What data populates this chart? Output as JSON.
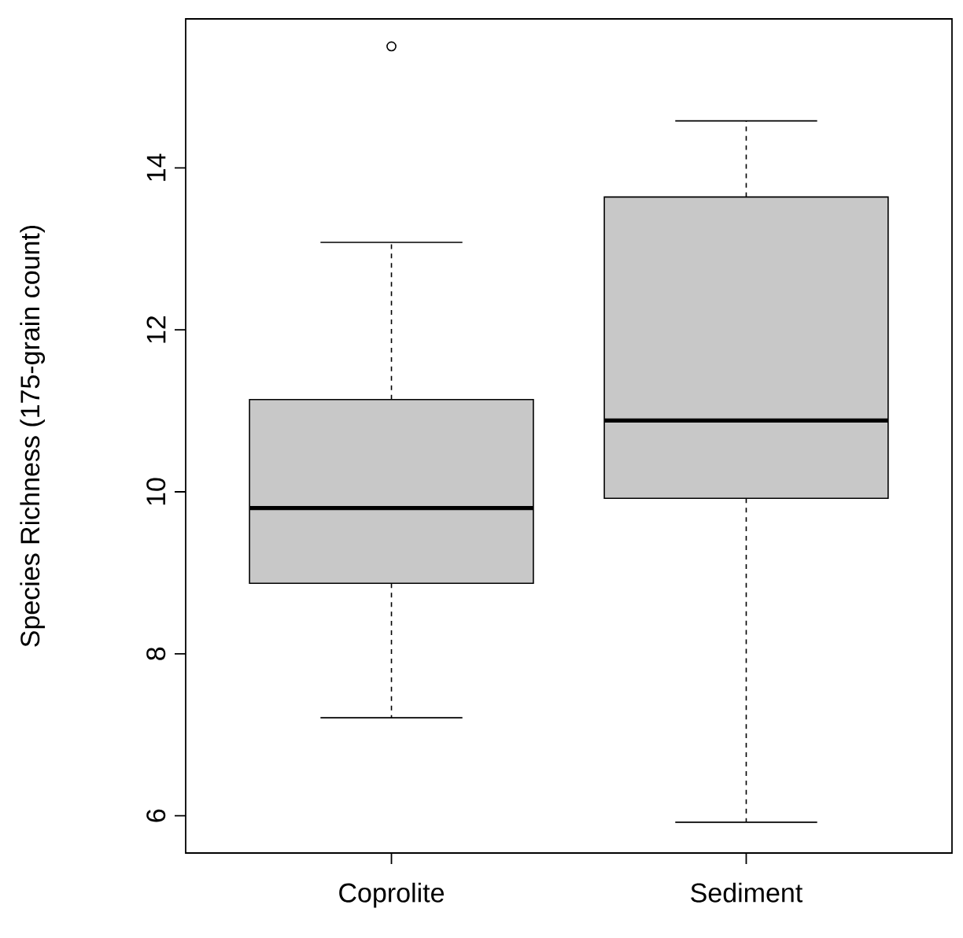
{
  "chart_data": {
    "type": "box",
    "ylabel": "Species Richness (175-grain count)",
    "categories": [
      "Coprolite",
      "Sediment"
    ],
    "boxes": [
      {
        "low": 7.21,
        "q1": 8.87,
        "median": 9.8,
        "q3": 11.14,
        "high": 13.08,
        "outliers": [
          15.5
        ]
      },
      {
        "low": 5.92,
        "q1": 9.92,
        "median": 10.88,
        "q3": 13.64,
        "high": 14.58
      }
    ],
    "color": "#c8c8c8",
    "marker": "circle",
    "ylim": [
      5.54,
      15.84
    ],
    "yticks": [
      6,
      8,
      10,
      12,
      14
    ]
  }
}
